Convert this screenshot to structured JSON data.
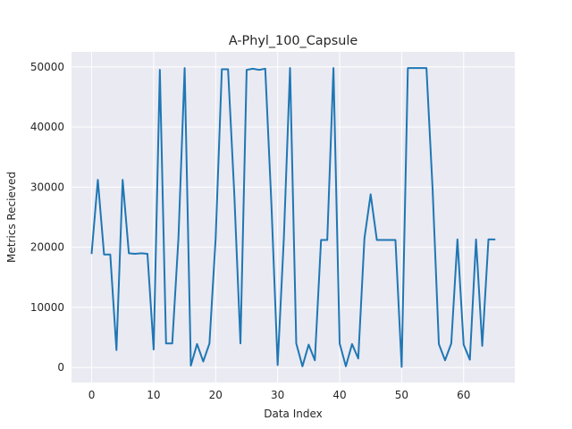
{
  "chart_data": {
    "type": "line",
    "title": "A-Phyl_100_Capsule",
    "xlabel": "Data Index",
    "ylabel": "Metrics Recieved",
    "xlim": [
      -3.25,
      68.25
    ],
    "ylim": [
      -2500,
      52500
    ],
    "xticks": [
      0,
      10,
      20,
      30,
      40,
      50,
      60
    ],
    "yticks": [
      0,
      10000,
      20000,
      30000,
      40000,
      50000
    ],
    "grid": true,
    "background": "#eaeaf2",
    "series": [
      {
        "color": "#1f77b4",
        "x": [
          0,
          1,
          2,
          3,
          4,
          5,
          6,
          7,
          8,
          9,
          10,
          11,
          12,
          13,
          14,
          15,
          16,
          17,
          18,
          19,
          20,
          21,
          22,
          23,
          24,
          25,
          26,
          27,
          28,
          29,
          30,
          31,
          32,
          33,
          34,
          35,
          36,
          37,
          38,
          39,
          40,
          41,
          42,
          43,
          44,
          45,
          46,
          47,
          48,
          49,
          50,
          51,
          52,
          53,
          54,
          55,
          56,
          57,
          58,
          59,
          60,
          61,
          62,
          63,
          64,
          65
        ],
        "values": [
          19000,
          31200,
          18800,
          18800,
          2900,
          31200,
          19000,
          18900,
          19000,
          18900,
          3000,
          49500,
          4000,
          4000,
          21500,
          49800,
          300,
          3900,
          1000,
          4000,
          21500,
          49600,
          49600,
          29000,
          4000,
          49500,
          49700,
          49500,
          49700,
          27000,
          400,
          21500,
          49800,
          4000,
          200,
          3800,
          1200,
          21200,
          21200,
          49800,
          4000,
          200,
          3900,
          1500,
          21500,
          28800,
          21200,
          21200,
          21200,
          21200,
          100,
          49800,
          49800,
          49800,
          49800,
          29500,
          3900,
          1200,
          4000,
          21300,
          3800,
          1300,
          21300,
          3600,
          21300,
          21300
        ]
      }
    ]
  }
}
